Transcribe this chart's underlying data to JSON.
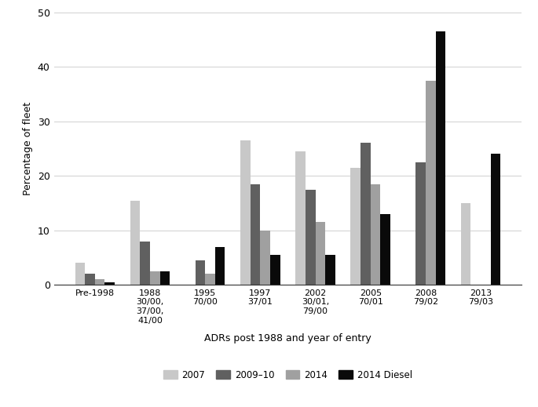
{
  "categories": [
    "Pre-1998",
    "1988\n30/00,\n37/00,\n41/00",
    "1995\n70/00",
    "1997\n37/01",
    "2002\n30/01,\n79/00",
    "2005\n70/01",
    "2008\n79/02",
    "2013\n79/03"
  ],
  "series": {
    "2007": [
      4.0,
      15.5,
      0.0,
      26.5,
      24.5,
      21.5,
      0.0,
      15.0
    ],
    "2009–10": [
      2.0,
      8.0,
      4.5,
      18.5,
      17.5,
      26.0,
      22.5,
      0.0
    ],
    "2014": [
      1.0,
      2.5,
      2.0,
      10.0,
      11.5,
      18.5,
      37.5,
      0.0
    ],
    "2014 Diesel": [
      0.5,
      2.5,
      7.0,
      5.5,
      5.5,
      13.0,
      46.5,
      24.0
    ]
  },
  "colors": {
    "2007": "#c8c8c8",
    "2009–10": "#606060",
    "2014": "#a0a0a0",
    "2014 Diesel": "#0a0a0a"
  },
  "ylabel": "Percentage of fleet",
  "xlabel": "ADRs post 1988 and year of entry",
  "ylim": [
    0,
    50
  ],
  "yticks": [
    0,
    10,
    20,
    30,
    40,
    50
  ],
  "bar_width": 0.18,
  "title": ""
}
